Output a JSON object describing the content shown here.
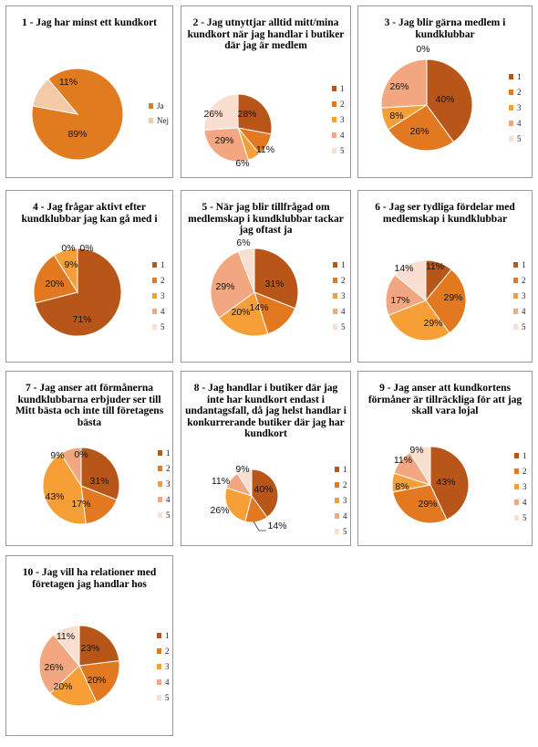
{
  "colors": {
    "ja": "#e07b20",
    "nej": "#f4c9a6",
    "s1": "#b8561a",
    "s2": "#e2781f",
    "s3": "#f79f37",
    "s4": "#f2a780",
    "s5": "#fadfd0"
  },
  "chart_data": [
    {
      "type": "pie",
      "title": "1 - Jag har minst ett kundkort",
      "categories": [
        "Ja",
        "Nej"
      ],
      "values": [
        89,
        11
      ],
      "labels": [
        "89%",
        "11%"
      ],
      "legend": [
        "Ja",
        "Nej"
      ]
    },
    {
      "type": "pie",
      "title": "2 - Jag utnyttjar alltid mitt/mina kundkort när jag handlar i butiker där jag är medlem",
      "categories": [
        "1",
        "2",
        "3",
        "4",
        "5"
      ],
      "values": [
        28,
        11,
        6,
        29,
        26
      ],
      "labels": [
        "28%",
        "11%",
        "6%",
        "29%",
        "26%"
      ],
      "legend": [
        "1",
        "2",
        "3",
        "4",
        "5"
      ]
    },
    {
      "type": "pie",
      "title": "3 - Jag blir gärna medlem i kundklubbar",
      "categories": [
        "1",
        "2",
        "3",
        "4",
        "5"
      ],
      "values": [
        40,
        26,
        8,
        26,
        0
      ],
      "labels": [
        "40%",
        "26%",
        "8%",
        "26%",
        "0%"
      ],
      "legend": [
        "1",
        "2",
        "3",
        "4",
        "5"
      ]
    },
    {
      "type": "pie",
      "title": "4 - Jag frågar aktivt efter kundklubbar jag kan gå med i",
      "categories": [
        "1",
        "2",
        "3",
        "4",
        "5"
      ],
      "values": [
        71,
        20,
        9,
        0,
        0
      ],
      "labels": [
        "71%",
        "20%",
        "9%",
        "0%",
        "0%"
      ],
      "legend": [
        "1",
        "2",
        "3",
        "4",
        "5"
      ]
    },
    {
      "type": "pie",
      "title": "5 - När jag blir tillfrågad om medlemskap i kundklubbar tackar jag oftast ja",
      "categories": [
        "1",
        "2",
        "3",
        "4",
        "5"
      ],
      "values": [
        31,
        14,
        20,
        29,
        6
      ],
      "labels": [
        "31%",
        "14%",
        "20%",
        "29%",
        "6%"
      ],
      "legend": [
        "1",
        "2",
        "3",
        "4",
        "5"
      ]
    },
    {
      "type": "pie",
      "title": "6 - Jag ser tydliga fördelar med medlemskap i kundklubbar",
      "categories": [
        "1",
        "2",
        "3",
        "4",
        "5"
      ],
      "values": [
        11,
        29,
        29,
        17,
        14
      ],
      "labels": [
        "11%",
        "29%",
        "29%",
        "17%",
        "14%"
      ],
      "legend": [
        "1",
        "2",
        "3",
        "4",
        "5"
      ]
    },
    {
      "type": "pie",
      "title": "7 - Jag anser att förmånerna kundklubbarna erbjuder ser till Mitt bästa och inte till företagens bästa",
      "categories": [
        "1",
        "2",
        "3",
        "4",
        "5"
      ],
      "values": [
        31,
        17,
        43,
        9,
        0
      ],
      "labels": [
        "31%",
        "17%",
        "43%",
        "9%",
        "0%"
      ],
      "legend": [
        "1",
        "2",
        "3",
        "4",
        "5"
      ]
    },
    {
      "type": "pie",
      "title": "8 - Jag handlar i butiker där jag inte har kundkort endast i undantagsfall, då jag helst handlar i konkurrerande butiker där jag har kundkort",
      "categories": [
        "1",
        "2",
        "3",
        "4",
        "5"
      ],
      "values": [
        40,
        14,
        26,
        11,
        9
      ],
      "labels": [
        "40%",
        "14%",
        "26%",
        "11%",
        "9%"
      ],
      "legend": [
        "1",
        "2",
        "3",
        "4",
        "5"
      ]
    },
    {
      "type": "pie",
      "title": "9 - Jag anser att kundkortens förmåner är tillräckliga för att jag skall vara lojal",
      "categories": [
        "1",
        "2",
        "3",
        "4",
        "5"
      ],
      "values": [
        43,
        29,
        8,
        11,
        9
      ],
      "labels": [
        "43%",
        "29%",
        "8%",
        "11%",
        "9%"
      ],
      "legend": [
        "1",
        "2",
        "3",
        "4",
        "5"
      ]
    },
    {
      "type": "pie",
      "title": "10 - Jag vill ha relationer med företagen jag handlar hos",
      "categories": [
        "1",
        "2",
        "3",
        "4",
        "5"
      ],
      "values": [
        23,
        20,
        20,
        26,
        11
      ],
      "labels": [
        "23%",
        "20%",
        "20%",
        "26%",
        "11%"
      ],
      "legend": [
        "1",
        "2",
        "3",
        "4",
        "5"
      ]
    }
  ]
}
